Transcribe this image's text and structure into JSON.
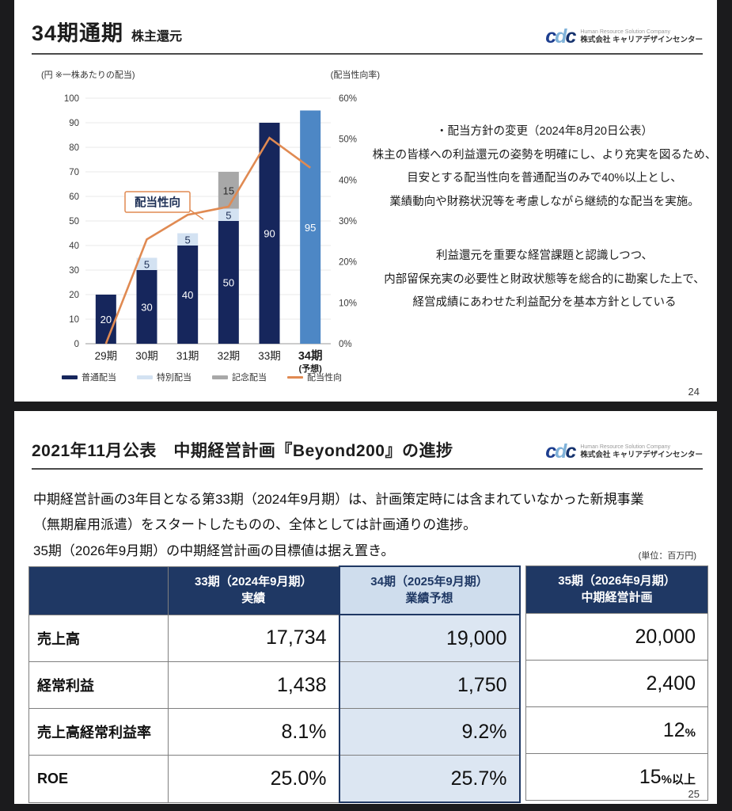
{
  "logo": {
    "mark": "cdc",
    "company_en": "Human Resource Solution Company",
    "company_jp": "株式会社 キャリアデザインセンター"
  },
  "slide1": {
    "title": "34期通期",
    "subtitle": "株主還元",
    "page_number": "24",
    "policy_block": {
      "lines": [
        "・配当方針の変更（2024年8月20日公表）",
        "株主の皆様への利益還元の姿勢を明確にし、より充実を図るため、",
        "目安とする配当性向を普通配当のみで40%以上とし、",
        "業績動向や財務状況等を考慮しながら継続的な配当を実施。"
      ]
    },
    "principle_block": {
      "lines": [
        "利益還元を重要な経営課題と認識しつつ、",
        "内部留保充実の必要性と財政状態等を総合的に勘案した上で、",
        "経営成績にあわせた利益配分を基本方針としている"
      ]
    }
  },
  "chart_data": {
    "type": "bar",
    "subtype": "stacked-bars-with-line",
    "left_axis": {
      "caption": "(円 ※一株あたりの配当)",
      "min": 0,
      "max": 100,
      "step": 10
    },
    "right_axis": {
      "caption": "(配当性向率)",
      "min": 0,
      "max": 60,
      "step": 10,
      "unit": "%"
    },
    "categories": [
      "29期",
      "30期",
      "31期",
      "32期",
      "33期",
      "34期"
    ],
    "category_subs": [
      "",
      "",
      "",
      "",
      "",
      "(予想)"
    ],
    "bar_series": [
      {
        "name": "普通配当",
        "color": "#16265c",
        "label_color": "#ffffff",
        "values": [
          20,
          30,
          40,
          50,
          90,
          null
        ]
      },
      {
        "name": "特別配当",
        "color": "#d3e2f2",
        "label_color": "#1d2f55",
        "values": [
          null,
          5,
          5,
          5,
          null,
          null
        ]
      },
      {
        "name": "記念配当",
        "color": "#a8a8a8",
        "label_color": "#2a2a2a",
        "values": [
          null,
          null,
          null,
          15,
          null,
          null
        ]
      },
      {
        "name": "普通配当（予想）",
        "color": "#4d87c5",
        "label_color": "#ffffff",
        "values": [
          null,
          null,
          null,
          null,
          null,
          95
        ]
      }
    ],
    "line_series": {
      "name": "配当性向",
      "color": "#e08a52",
      "label": "配当性向",
      "values_percent": [
        0,
        25.5,
        31.5,
        33.5,
        50.3,
        43.0
      ]
    },
    "legend": [
      {
        "label": "普通配当",
        "color": "#16265c",
        "shape": "bar"
      },
      {
        "label": "特別配当",
        "color": "#d3e2f2",
        "shape": "bar"
      },
      {
        "label": "記念配当",
        "color": "#a8a8a8",
        "shape": "bar"
      },
      {
        "label": "配当性向",
        "color": "#e08a52",
        "shape": "line"
      }
    ],
    "grid": true,
    "legend_position": "bottom"
  },
  "slide2": {
    "title": "2021年11月公表　中期経営計画『Beyond200』の進捗",
    "page_number": "25",
    "intro_lines": [
      "中期経営計画の3年目となる第33期（2024年9月期）は、計画策定時には含まれていなかった新規事業",
      "（無期雇用派遣）をスタートしたものの、全体としては計画通りの進捗。",
      "35期（2026年9月期）の中期経営計画の目標値は据え置き。"
    ],
    "unit_note": "(単位：百万円)",
    "table": {
      "col33_header": {
        "line1": "33期（2024年9月期）",
        "line2": "実績"
      },
      "col34_header": {
        "line1": "34期（2025年9月期）",
        "line2": "業績予想"
      },
      "col35_header": {
        "line1": "35期（2026年9月期）",
        "line2": "中期経営計画"
      },
      "rows": [
        {
          "label": "売上高",
          "v33": "17,734",
          "v34": "19,000",
          "v35": "20,000",
          "v35_suffix": ""
        },
        {
          "label": "経常利益",
          "v33": "1,438",
          "v34": "1,750",
          "v35": "2,400",
          "v35_suffix": ""
        },
        {
          "label": "売上高経常利益率",
          "v33": "8.1%",
          "v34": "9.2%",
          "v35": "12",
          "v35_suffix": "%"
        },
        {
          "label": "ROE",
          "v33": "25.0%",
          "v34": "25.7%",
          "v35": "15",
          "v35_suffix": "%以上"
        }
      ]
    }
  }
}
